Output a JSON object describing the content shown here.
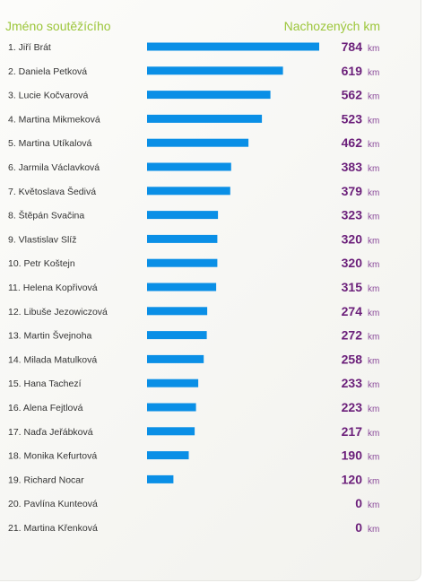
{
  "header": {
    "name_col": "Jméno soutěžícího",
    "km_col": "Nachozených km"
  },
  "colors": {
    "header": "#9cc63a",
    "bar": "#0a8fe6",
    "value": "#6b1f7a"
  },
  "chart_data": {
    "type": "bar",
    "orientation": "horizontal",
    "title": "",
    "xlabel": "Nachozených km",
    "ylabel": "Jméno soutěžícího",
    "unit": "km",
    "xlim": [
      0,
      784
    ],
    "categories": [
      "1. Jiří Brát",
      "2. Daniela Petková",
      "3. Lucie Kočvarová",
      "4. Martina Mikmeková",
      "5. Martina Utíkalová",
      "6. Jarmila Václavková",
      "7. Květoslava Šedivá",
      "8. Štěpán Svačina",
      "9. Vlastislav Slíž",
      "10. Petr Koštejn",
      "11. Helena Kopřivová",
      "12. Libuše Jezowiczová",
      "13. Martin Švejnoha",
      "14. Milada Matulková",
      "15. Hana Tachezí",
      "16. Alena Fejtlová",
      "17. Naďa Jeřábková",
      "18. Monika Kefurtová",
      "19. Richard Nocar",
      "20. Pavlína Kunteová",
      "21. Martina Křenková"
    ],
    "values": [
      784,
      619,
      562,
      523,
      462,
      383,
      379,
      323,
      320,
      320,
      315,
      274,
      272,
      258,
      233,
      223,
      217,
      190,
      120,
      0,
      0
    ]
  }
}
